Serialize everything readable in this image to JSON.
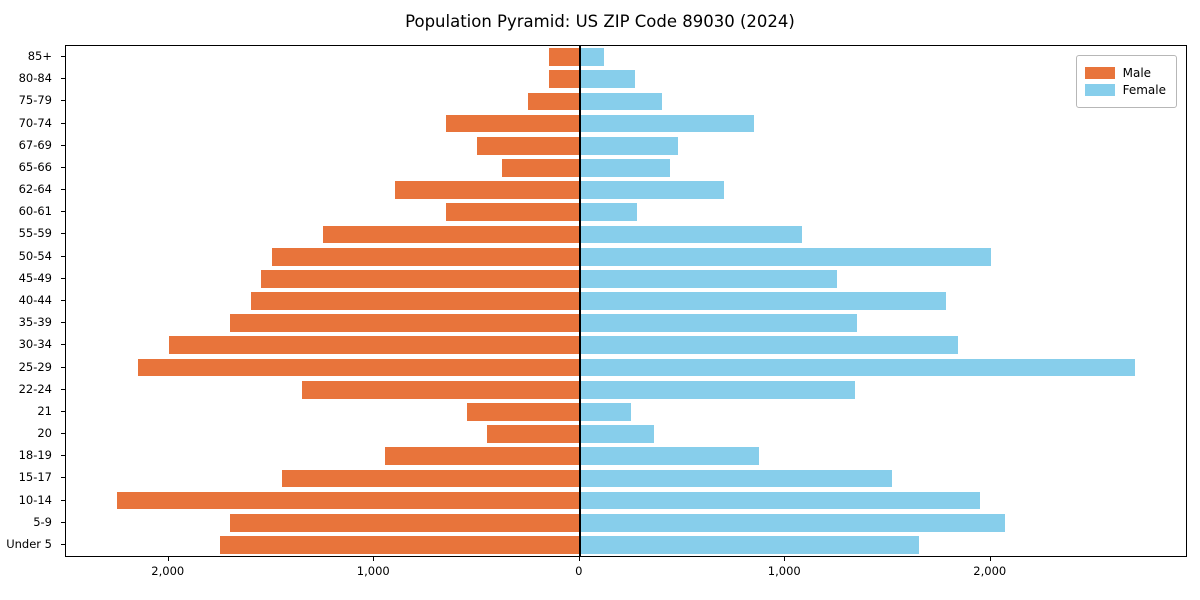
{
  "title": "Population Pyramid: US ZIP Code 89030 (2024)",
  "legend": {
    "male_label": "Male",
    "female_label": "Female"
  },
  "colors": {
    "male": "#e8743b",
    "female": "#87ceeb",
    "axis": "#000000"
  },
  "chart_data": {
    "type": "bar",
    "subtype": "population-pyramid",
    "title": "Population Pyramid: US ZIP Code 89030 (2024)",
    "categories_top_to_bottom": [
      "85+",
      "80-84",
      "75-79",
      "70-74",
      "67-69",
      "65-66",
      "62-64",
      "60-61",
      "55-59",
      "50-54",
      "45-49",
      "40-44",
      "35-39",
      "30-34",
      "25-29",
      "22-24",
      "21",
      "20",
      "18-19",
      "15-17",
      "10-14",
      "5-9",
      "Under 5"
    ],
    "series": [
      {
        "name": "Male",
        "side": "left",
        "color": "#e8743b",
        "values": [
          150,
          150,
          250,
          650,
          500,
          380,
          900,
          650,
          1250,
          1500,
          1550,
          1600,
          1700,
          2000,
          2150,
          1350,
          550,
          450,
          950,
          1450,
          2250,
          1700,
          1750
        ]
      },
      {
        "name": "Female",
        "side": "right",
        "color": "#87ceeb",
        "values": [
          120,
          270,
          400,
          850,
          480,
          440,
          700,
          280,
          1080,
          2000,
          1250,
          1780,
          1350,
          1840,
          2700,
          1340,
          250,
          360,
          870,
          1520,
          1950,
          2070,
          1650
        ]
      }
    ],
    "x_ticks": [
      {
        "value": -2000,
        "label": "2,000"
      },
      {
        "value": -1000,
        "label": "1,000"
      },
      {
        "value": 0,
        "label": "0"
      },
      {
        "value": 1000,
        "label": "1,000"
      },
      {
        "value": 2000,
        "label": "2,000"
      }
    ],
    "xlim": {
      "left_max": 2500,
      "right_max": 2950
    },
    "grid": false,
    "legend_position": "upper right"
  }
}
